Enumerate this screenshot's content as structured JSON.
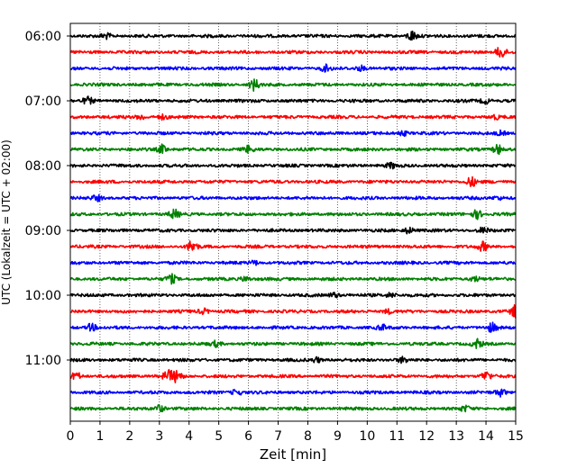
{
  "chart_data": {
    "type": "line",
    "subtype": "helicorder",
    "xlabel": "Zeit  [min]",
    "ylabel": "UTC (Lokalzeit = UTC + 02:00)",
    "xlim": [
      0,
      15
    ],
    "x_ticks": [
      0,
      1,
      2,
      3,
      4,
      5,
      6,
      7,
      8,
      9,
      10,
      11,
      12,
      13,
      14,
      15
    ],
    "y_tick_labels": [
      "06:00",
      "07:00",
      "08:00",
      "09:00",
      "10:00",
      "11:00"
    ],
    "trace_interval_minutes": 15,
    "trace_colors": [
      "#000000",
      "#ff0000",
      "#0000ff",
      "#008000"
    ],
    "grid": "vertical dotted",
    "traces": [
      {
        "start": "06:00",
        "color": "#000000",
        "events": [
          [
            1.2,
            0.4
          ],
          [
            11.5,
            0.8
          ]
        ]
      },
      {
        "start": "06:15",
        "color": "#ff0000",
        "events": [
          [
            14.5,
            1.0
          ]
        ]
      },
      {
        "start": "06:30",
        "color": "#0000ff",
        "events": [
          [
            8.6,
            0.5
          ],
          [
            9.8,
            0.4
          ]
        ]
      },
      {
        "start": "06:45",
        "color": "#008000",
        "events": [
          [
            6.2,
            0.9
          ]
        ]
      },
      {
        "start": "07:00",
        "color": "#000000",
        "events": [
          [
            0.6,
            0.5
          ],
          [
            14.0,
            0.4
          ]
        ]
      },
      {
        "start": "07:15",
        "color": "#ff0000",
        "events": [
          [
            2.4,
            0.4
          ],
          [
            3.1,
            0.3
          ],
          [
            14.3,
            0.3
          ]
        ]
      },
      {
        "start": "07:30",
        "color": "#0000ff",
        "events": [
          [
            11.2,
            0.4
          ],
          [
            14.5,
            0.3
          ]
        ]
      },
      {
        "start": "07:45",
        "color": "#008000",
        "events": [
          [
            3.1,
            0.7
          ],
          [
            6.0,
            0.5
          ],
          [
            14.4,
            0.8
          ]
        ]
      },
      {
        "start": "08:00",
        "color": "#000000",
        "events": [
          [
            10.8,
            0.4
          ]
        ]
      },
      {
        "start": "08:15",
        "color": "#ff0000",
        "events": [
          [
            13.5,
            0.8
          ]
        ]
      },
      {
        "start": "08:30",
        "color": "#0000ff",
        "events": [
          [
            0.9,
            0.4
          ],
          [
            14.4,
            0.3
          ]
        ]
      },
      {
        "start": "08:45",
        "color": "#008000",
        "events": [
          [
            3.5,
            0.7
          ],
          [
            13.7,
            0.7
          ]
        ]
      },
      {
        "start": "09:00",
        "color": "#000000",
        "events": [
          [
            11.4,
            0.5
          ],
          [
            13.9,
            0.4
          ]
        ]
      },
      {
        "start": "09:15",
        "color": "#ff0000",
        "events": [
          [
            4.1,
            1.0
          ],
          [
            13.9,
            0.7
          ]
        ]
      },
      {
        "start": "09:30",
        "color": "#0000ff",
        "events": [
          [
            6.2,
            0.3
          ]
        ]
      },
      {
        "start": "09:45",
        "color": "#008000",
        "events": [
          [
            3.4,
            0.7
          ],
          [
            5.9,
            0.4
          ],
          [
            13.6,
            0.4
          ]
        ]
      },
      {
        "start": "10:00",
        "color": "#000000",
        "events": [
          [
            8.9,
            0.4
          ],
          [
            10.8,
            0.4
          ]
        ]
      },
      {
        "start": "10:15",
        "color": "#ff0000",
        "events": [
          [
            4.5,
            0.4
          ],
          [
            10.7,
            0.3
          ],
          [
            15.0,
            1.0
          ]
        ]
      },
      {
        "start": "10:30",
        "color": "#0000ff",
        "events": [
          [
            0.7,
            0.6
          ],
          [
            10.5,
            0.4
          ],
          [
            14.2,
            0.7
          ]
        ]
      },
      {
        "start": "10:45",
        "color": "#008000",
        "events": [
          [
            4.9,
            0.4
          ],
          [
            13.7,
            0.7
          ]
        ]
      },
      {
        "start": "11:00",
        "color": "#000000",
        "events": [
          [
            8.3,
            0.4
          ],
          [
            11.2,
            0.4
          ]
        ]
      },
      {
        "start": "11:15",
        "color": "#ff0000",
        "events": [
          [
            0.2,
            0.6
          ],
          [
            3.3,
            0.9
          ],
          [
            3.6,
            1.0
          ],
          [
            14.0,
            0.7
          ]
        ]
      },
      {
        "start": "11:30",
        "color": "#0000ff",
        "events": [
          [
            5.6,
            0.5
          ],
          [
            14.5,
            0.6
          ]
        ]
      },
      {
        "start": "11:45",
        "color": "#008000",
        "events": [
          [
            3.0,
            0.6
          ],
          [
            13.3,
            0.4
          ]
        ]
      }
    ]
  }
}
